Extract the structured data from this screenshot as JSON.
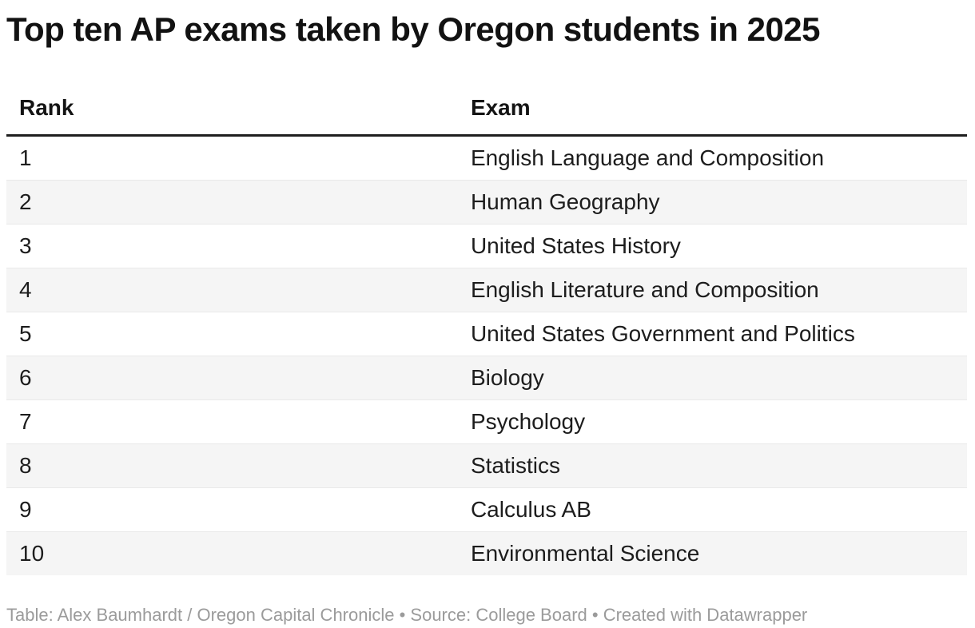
{
  "title": "Top ten AP exams taken by Oregon students in 2025",
  "chart_data": {
    "type": "table",
    "title": "Top ten AP exams taken by Oregon students in 2025",
    "columns": {
      "rank": "Rank",
      "exam": "Exam"
    },
    "rows": [
      {
        "rank": "1",
        "exam": "English Language and Composition"
      },
      {
        "rank": "2",
        "exam": "Human Geography"
      },
      {
        "rank": "3",
        "exam": "United States History"
      },
      {
        "rank": "4",
        "exam": "English Literature and Composition"
      },
      {
        "rank": "5",
        "exam": "United States Government and Politics"
      },
      {
        "rank": "6",
        "exam": "Biology"
      },
      {
        "rank": "7",
        "exam": "Psychology"
      },
      {
        "rank": "8",
        "exam": "Statistics"
      },
      {
        "rank": "9",
        "exam": "Calculus AB"
      },
      {
        "rank": "10",
        "exam": "Environmental Science"
      }
    ],
    "layout": {
      "zebra_striping": true,
      "striped_rows": "even",
      "stripe_color": "#f5f5f5",
      "row_separator_color": "#e9e9e9",
      "header_rule_color": "#1f1f1f",
      "footer_text_color": "#9b9b9b"
    }
  },
  "footer": {
    "credit": "Table: Alex Baumhardt / Oregon Capital Chronicle • Source: College Board • Created with Datawrapper"
  }
}
